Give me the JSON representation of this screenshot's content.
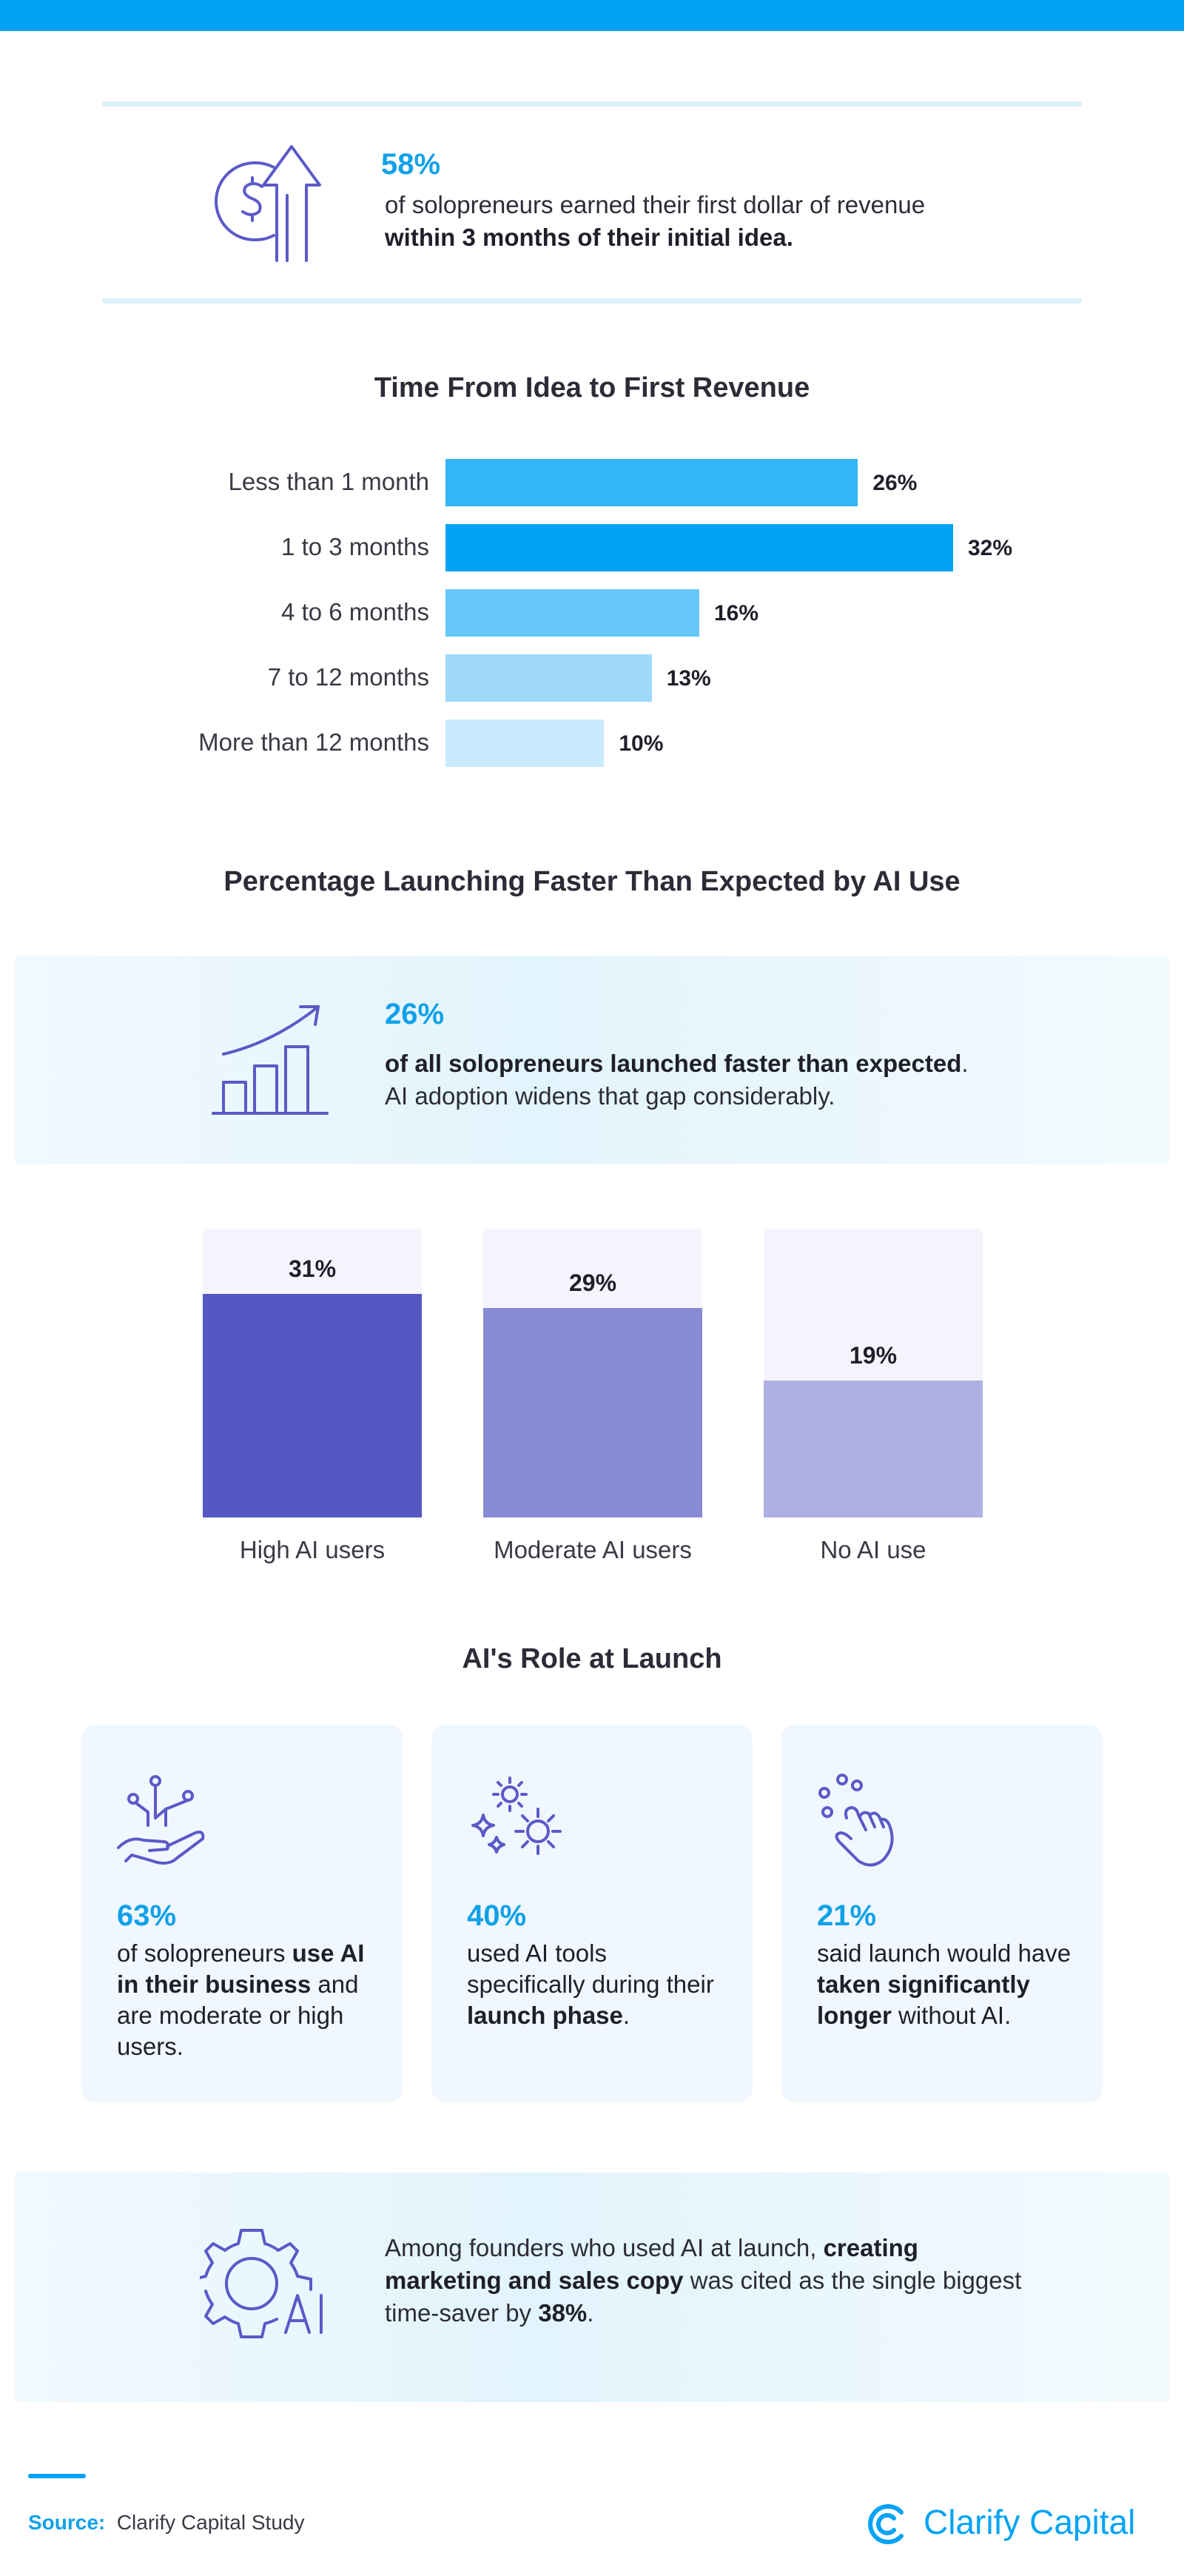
{
  "colors": {
    "accent": "#02a3f4",
    "stat_blue": "#10a1e8",
    "hbar_colors": [
      "#33b5f7",
      "#02a3f4",
      "#66c8fa",
      "#9ed9fb",
      "#c8eafd"
    ],
    "col_colors": [
      "#5558c2",
      "#888bd4",
      "#aeb0e3"
    ],
    "icon_purple": "#5a5ac8"
  },
  "hero": {
    "icon": "dollar-growth-arrow-icon",
    "stat": "58%",
    "line1": "of solopreneurs earned their first dollar of revenue",
    "line2": "within 3 months of their initial idea."
  },
  "chart_data": [
    {
      "type": "bar",
      "orientation": "horizontal",
      "title": "Time From Idea to First Revenue",
      "categories": [
        "Less than 1 month",
        "1 to 3 months",
        "4 to 6 months",
        "7 to 12 months",
        "More than 12 months"
      ],
      "values": [
        26,
        32,
        16,
        13,
        10
      ],
      "value_labels": [
        "26%",
        "32%",
        "16%",
        "13%",
        "10%"
      ],
      "xlim": [
        0,
        32
      ],
      "grid": false
    },
    {
      "type": "bar",
      "orientation": "vertical",
      "title": "Percentage Launching Faster Than Expected by AI Use",
      "categories": [
        "High AI users",
        "Moderate AI users",
        "No AI use"
      ],
      "values": [
        31,
        29,
        19
      ],
      "value_labels": [
        "31%",
        "29%",
        "19%"
      ],
      "ylim": [
        0,
        40
      ],
      "grid": false
    }
  ],
  "callout": {
    "icon": "growth-chart-icon",
    "stat": "26%",
    "line1_bold": "of all solopreneurs launched faster than expected",
    "line1_end": ".",
    "line2": "AI adoption widens that gap considerably."
  },
  "role": {
    "title": "AI's Role at Launch",
    "cards": [
      {
        "icon": "hand-network-icon",
        "stat": "63%",
        "parts": [
          {
            "t": "of solopreneurs ",
            "b": false
          },
          {
            "t": "use AI in their business",
            "b": true
          },
          {
            "t": " and are moderate or high users.",
            "b": false
          }
        ]
      },
      {
        "icon": "gears-sparkle-icon",
        "stat": "40%",
        "parts": [
          {
            "t": "used AI tools specifically during their ",
            "b": false
          },
          {
            "t": "launch phase",
            "b": true
          },
          {
            "t": ".",
            "b": false
          }
        ]
      },
      {
        "icon": "pointer-hand-click-icon",
        "stat": "21%",
        "parts": [
          {
            "t": "said launch would have ",
            "b": false
          },
          {
            "t": "taken significantly longer",
            "b": true
          },
          {
            "t": " without AI.",
            "b": false
          }
        ]
      }
    ]
  },
  "bottom_callout": {
    "icon": "ai-gear-icon",
    "p1": "Among founders who used AI at launch, ",
    "b1": "creating marketing and sales copy",
    "p2": " was cited as the single biggest time-saver by ",
    "b2": "38%",
    "p3": "."
  },
  "footer": {
    "source_label": "Source:",
    "source_text": "Clarify Capital Study",
    "brand": "Clarify Capital",
    "brand_icon": "clarify-logo-icon"
  }
}
